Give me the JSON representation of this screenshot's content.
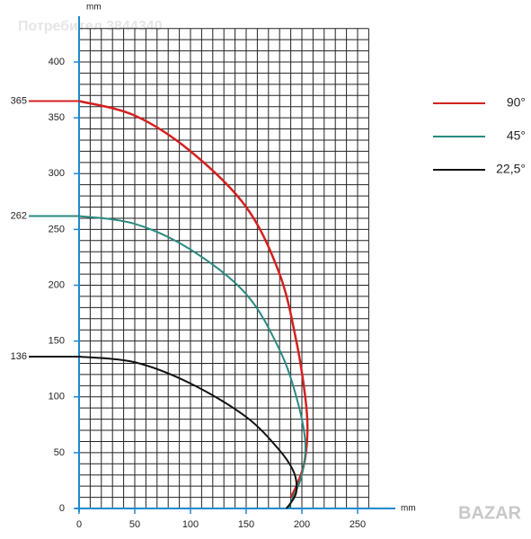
{
  "chart_data": {
    "type": "line",
    "x_label": "mm",
    "y_label": "mm",
    "watermark": "Потребител 3844340",
    "logo": "BAZAR",
    "xlim": [
      0,
      260
    ],
    "ylim": [
      0,
      430
    ],
    "xticks": [
      0,
      50,
      100,
      150,
      200,
      250
    ],
    "yticks": [
      0,
      50,
      100,
      150,
      200,
      250,
      300,
      350,
      400
    ],
    "grid": true,
    "minor_grid": 10,
    "legend": "right",
    "series": [
      {
        "name": "90°",
        "color": "#d42020",
        "x": [
          0,
          50,
          100,
          150,
          180,
          195,
          203,
          205,
          202,
          195,
          190
        ],
        "y": [
          365,
          352,
          320,
          270,
          210,
          150,
          100,
          70,
          40,
          20,
          10
        ]
      },
      {
        "name": "45°",
        "color": "#2a8a80",
        "x": [
          0,
          50,
          100,
          150,
          180,
          195,
          203,
          200,
          192,
          188
        ],
        "y": [
          262,
          255,
          232,
          192,
          142,
          100,
          60,
          30,
          10,
          0
        ]
      },
      {
        "name": "22,5°",
        "color": "#111111",
        "x": [
          0,
          50,
          100,
          150,
          180,
          193,
          195,
          190,
          186
        ],
        "y": [
          136,
          131,
          112,
          82,
          52,
          32,
          15,
          5,
          0
        ]
      }
    ]
  }
}
